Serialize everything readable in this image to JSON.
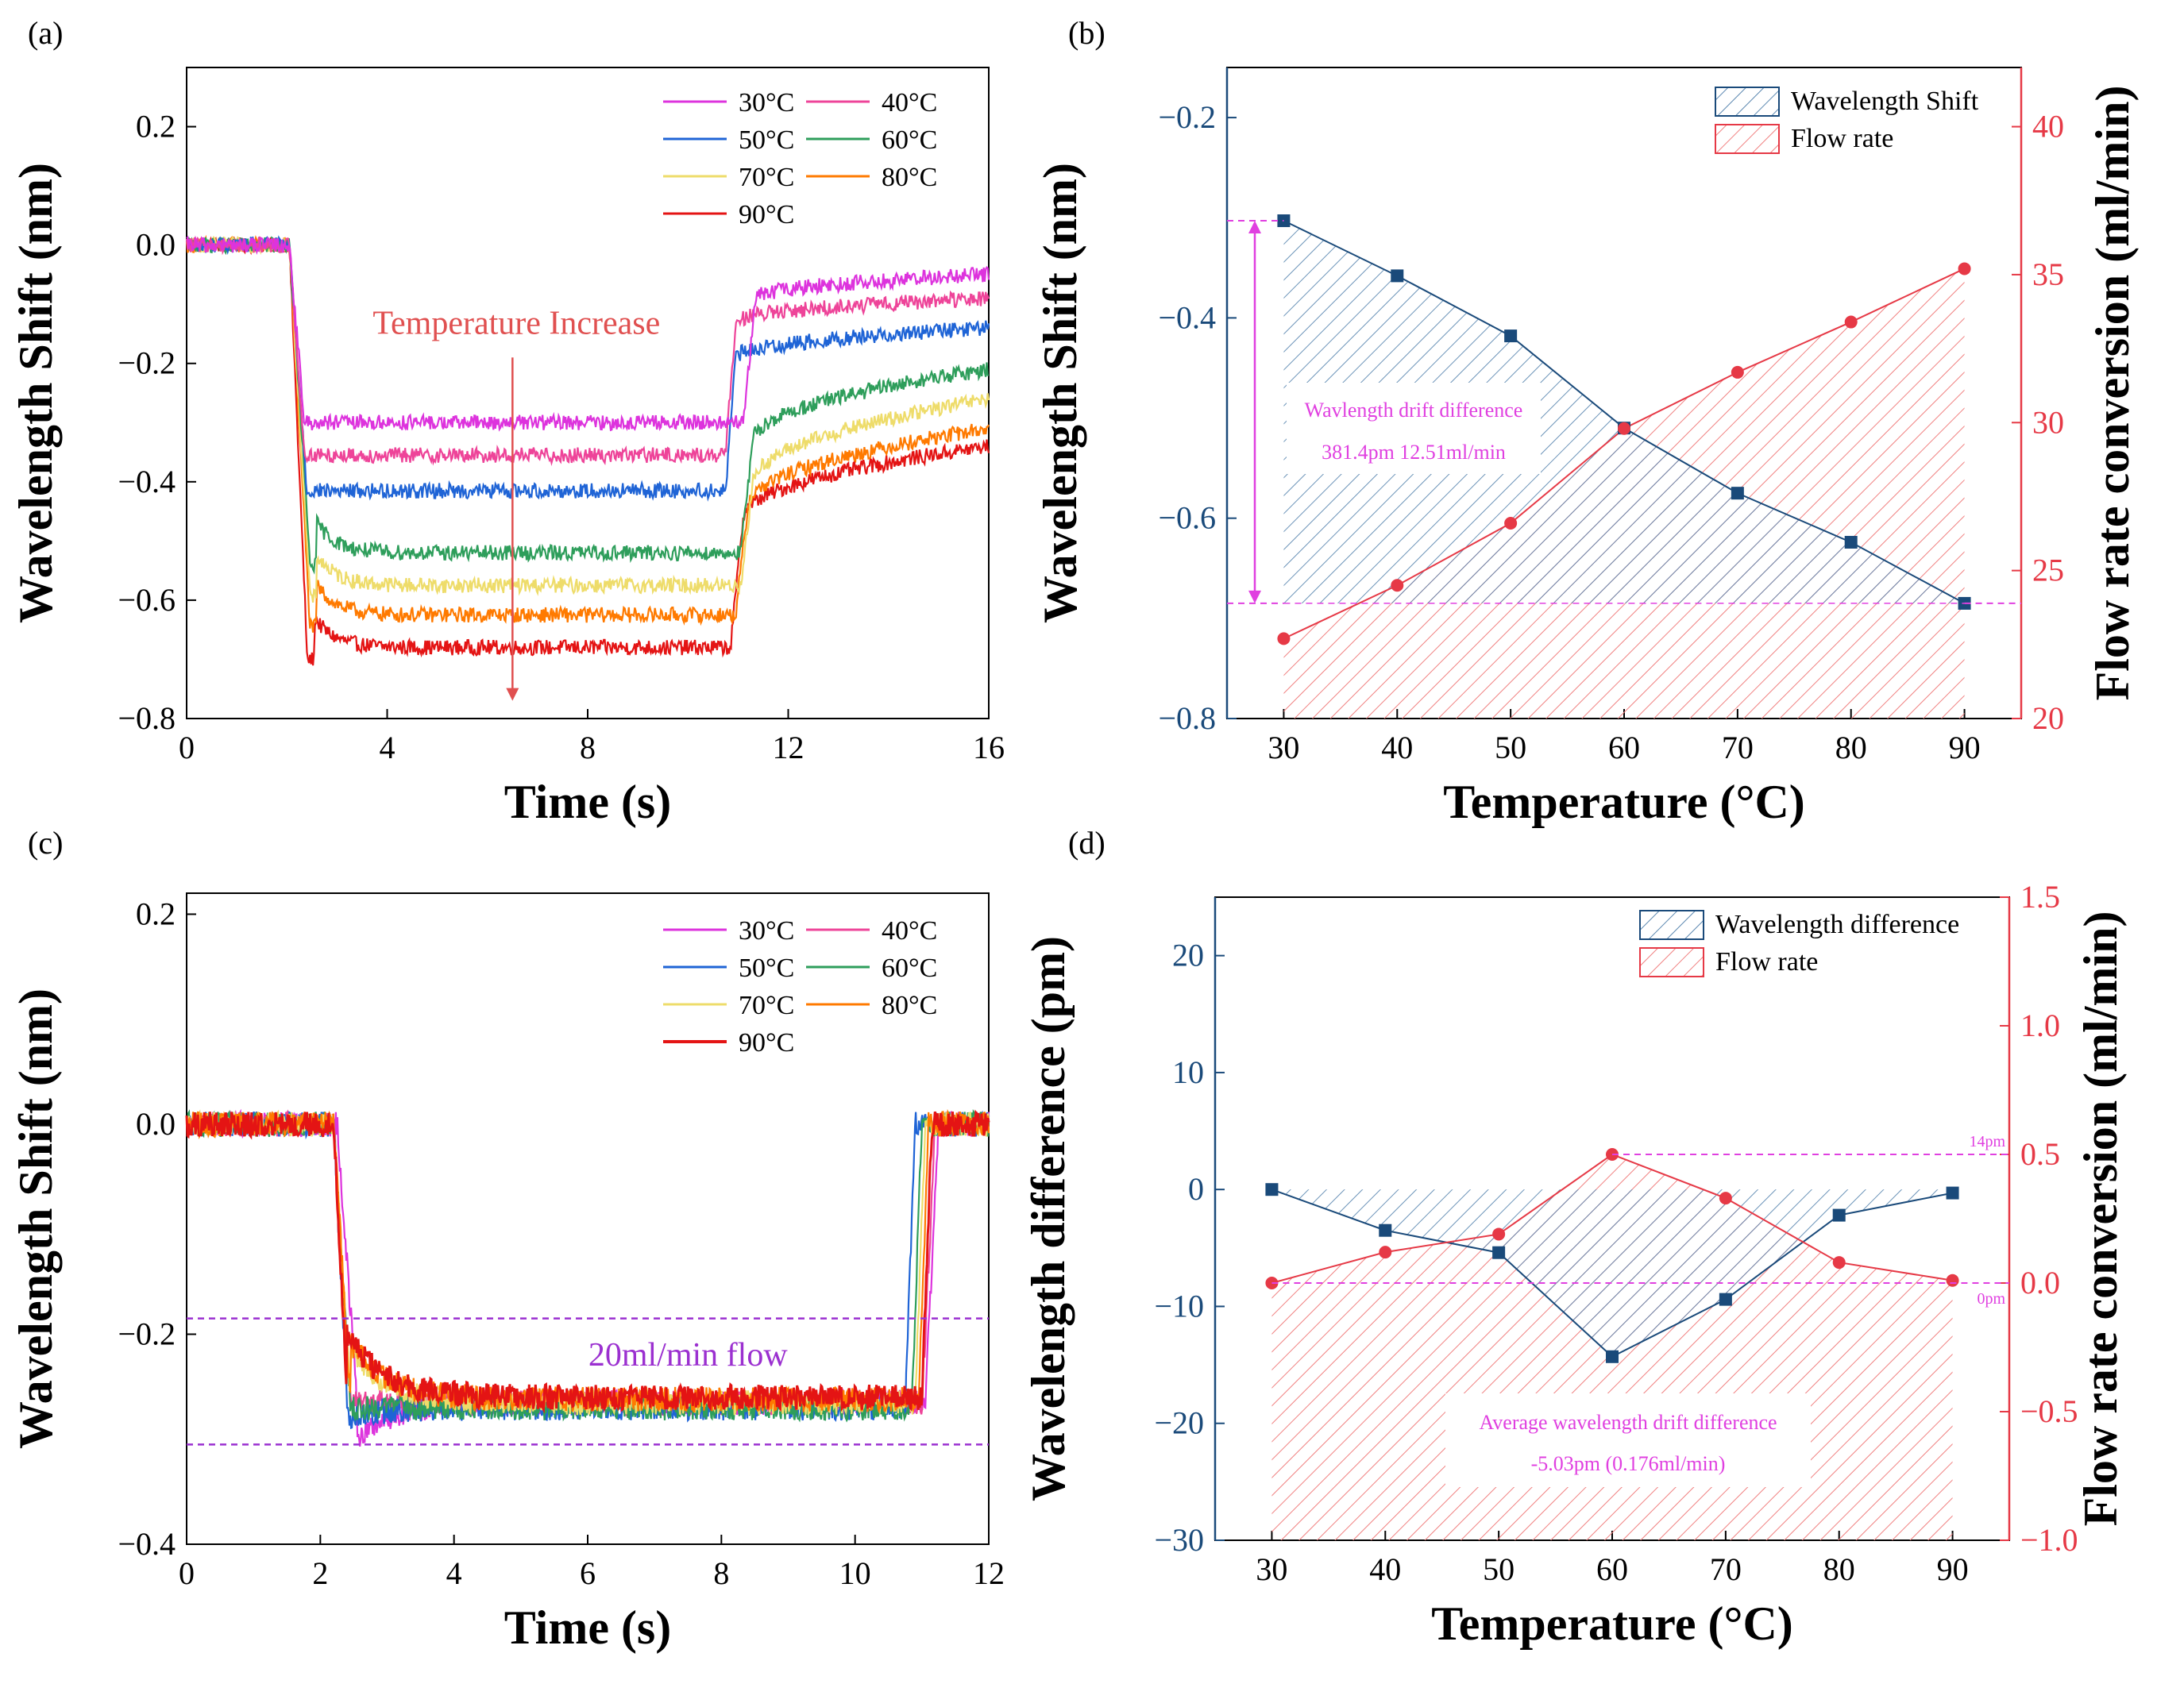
{
  "colors": {
    "30": "#dd33dd",
    "40": "#ee4499",
    "50": "#1f64d6",
    "60": "#2e9e5b",
    "70": "#eedc6a",
    "80": "#ff7a00",
    "90": "#e41414",
    "navy": "#1a4a7a",
    "red": "#e63946",
    "magenta": "#e040e0",
    "violet": "#9b30d0",
    "hatchBlue": "#5a87b0",
    "hatchRed": "#f08080",
    "arrowRed": "#e05050",
    "axisBlue": "#1a4a7a",
    "axisRed": "#e63946"
  },
  "panels": {
    "a": {
      "label": "(a)"
    },
    "b": {
      "label": "(b)"
    },
    "c": {
      "label": "(c)"
    },
    "d": {
      "label": "(d)"
    }
  },
  "chart_data": [
    {
      "id": "a",
      "type": "line",
      "xlabel": "Time (s)",
      "ylabel": "Wavelength Shift (nm)",
      "xlim": [
        0,
        16
      ],
      "ylim": [
        -0.8,
        0.3
      ],
      "xticks": [
        0,
        4,
        8,
        12,
        16
      ],
      "yticks": [
        -0.8,
        -0.6,
        -0.4,
        -0.2,
        0.0,
        0.2
      ],
      "ytick_labels": [
        "−0.8",
        "−0.6",
        "−0.4",
        "−0.2",
        "0.0",
        "0.2"
      ],
      "annotation": {
        "text": "Temperature Increase",
        "arrow_x": 6.5,
        "arrow_from": -0.19,
        "arrow_to": -0.77
      },
      "legend": [
        "30°C",
        "40°C",
        "50°C",
        "60°C",
        "70°C",
        "80°C",
        "90°C"
      ],
      "series": [
        {
          "name": "30°C",
          "key": "30",
          "baseline": 0.0,
          "drop_start": 2.05,
          "drop_end": 2.35,
          "plateau": -0.3,
          "spike": 0.0,
          "rise_start": 11.1,
          "rise_end": 11.35,
          "recover_start": -0.09,
          "recover_end": -0.05
        },
        {
          "name": "40°C",
          "key": "40",
          "baseline": 0.0,
          "drop_start": 2.05,
          "drop_end": 2.35,
          "plateau": -0.355,
          "spike": 0.0,
          "rise_start": 10.75,
          "rise_end": 10.95,
          "recover_start": -0.13,
          "recover_end": -0.09
        },
        {
          "name": "50°C",
          "key": "50",
          "baseline": 0.0,
          "drop_start": 2.05,
          "drop_end": 2.4,
          "plateau": -0.415,
          "spike": 0.0,
          "rise_start": 10.75,
          "rise_end": 10.95,
          "recover_start": -0.19,
          "recover_end": -0.14
        },
        {
          "name": "60°C",
          "key": "60",
          "baseline": 0.0,
          "drop_start": 2.05,
          "drop_end": 2.45,
          "plateau": -0.52,
          "spike": -0.02,
          "rise_start": 11.05,
          "rise_end": 11.3,
          "recover_start": -0.33,
          "recover_end": -0.21
        },
        {
          "name": "70°C",
          "key": "70",
          "baseline": 0.0,
          "drop_start": 2.05,
          "drop_end": 2.45,
          "plateau": -0.575,
          "spike": -0.03,
          "rise_start": 11.05,
          "rise_end": 11.3,
          "recover_start": -0.4,
          "recover_end": -0.26
        },
        {
          "name": "80°C",
          "key": "80",
          "baseline": 0.0,
          "drop_start": 2.05,
          "drop_end": 2.45,
          "plateau": -0.625,
          "spike": -0.03,
          "rise_start": 10.95,
          "rise_end": 11.2,
          "recover_start": -0.44,
          "recover_end": -0.31
        },
        {
          "name": "90°C",
          "key": "90",
          "baseline": 0.0,
          "drop_start": 2.05,
          "drop_end": 2.4,
          "plateau": -0.68,
          "spike": -0.02,
          "rise_start": 10.85,
          "rise_end": 11.1,
          "recover_start": -0.46,
          "recover_end": -0.34
        }
      ]
    },
    {
      "id": "b",
      "type": "line",
      "xlabel": "Temperature (°C)",
      "ylabel": "Wavelength Shift (nm)",
      "y2label": "Flow rate conversion (ml/min)",
      "xlim": [
        25,
        95
      ],
      "ylim": [
        -0.8,
        -0.15
      ],
      "y2lim": [
        20,
        42
      ],
      "xticks": [
        30,
        40,
        50,
        60,
        70,
        80,
        90
      ],
      "yticks": [
        -0.8,
        -0.6,
        -0.4,
        -0.2
      ],
      "ytick_labels": [
        "−0.8",
        "−0.6",
        "−0.4",
        "−0.2"
      ],
      "y2ticks": [
        20,
        25,
        30,
        35,
        40
      ],
      "categories": [
        30,
        40,
        50,
        60,
        70,
        80,
        90
      ],
      "series": [
        {
          "name": "Wavelength Shift",
          "axis": "left",
          "values": [
            -0.303,
            -0.358,
            -0.418,
            -0.51,
            -0.575,
            -0.624,
            -0.685
          ]
        },
        {
          "name": "Flow rate",
          "axis": "right",
          "values": [
            22.7,
            24.5,
            26.6,
            29.8,
            31.7,
            33.4,
            35.2
          ]
        }
      ],
      "legend": [
        "Wavelength Shift",
        "Flow rate"
      ],
      "annotation_title": "Wavlength drift difference",
      "annotation_value": "381.4pm 12.51ml/min",
      "ref_lines": [
        -0.303,
        -0.685
      ]
    },
    {
      "id": "c",
      "type": "line",
      "xlabel": "Time (s)",
      "ylabel": "Wavelength Shift (nm)",
      "xlim": [
        0,
        12
      ],
      "ylim": [
        -0.4,
        0.22
      ],
      "xticks": [
        0,
        2,
        4,
        6,
        8,
        10,
        12
      ],
      "yticks": [
        -0.4,
        -0.2,
        0.0,
        0.2
      ],
      "ytick_labels": [
        "−0.4",
        "−0.2",
        "0.0",
        "0.2"
      ],
      "annotation": {
        "text": "20ml/min flow"
      },
      "ref_lines": [
        -0.185,
        -0.305
      ],
      "legend": [
        "30°C",
        "40°C",
        "50°C",
        "60°C",
        "70°C",
        "80°C",
        "90°C"
      ],
      "series": [
        {
          "name": "30°C",
          "key": "30",
          "drop_start": 2.25,
          "drop_end": 2.55,
          "plateau": -0.265,
          "spike": -0.035,
          "rise_start": 11.05,
          "rise_end": 11.25
        },
        {
          "name": "40°C",
          "key": "40",
          "drop_start": 2.2,
          "drop_end": 2.45,
          "plateau": -0.265,
          "spike": 0.0,
          "rise_start": 11.0,
          "rise_end": 11.2
        },
        {
          "name": "50°C",
          "key": "50",
          "drop_start": 2.2,
          "drop_end": 2.4,
          "plateau": -0.27,
          "spike": -0.01,
          "rise_start": 10.75,
          "rise_end": 10.9
        },
        {
          "name": "60°C",
          "key": "60",
          "drop_start": 2.2,
          "drop_end": 2.45,
          "plateau": -0.27,
          "spike": 0.0,
          "rise_start": 10.85,
          "rise_end": 11.0
        },
        {
          "name": "70°C",
          "key": "70",
          "drop_start": 2.2,
          "drop_end": 2.45,
          "plateau": -0.265,
          "spike": 0.05,
          "rise_start": 10.9,
          "rise_end": 11.05
        },
        {
          "name": "80°C",
          "key": "80",
          "drop_start": 2.2,
          "drop_end": 2.45,
          "plateau": -0.262,
          "spike": 0.055,
          "rise_start": 10.95,
          "rise_end": 11.1
        },
        {
          "name": "90°C",
          "key": "90",
          "drop_start": 2.2,
          "drop_end": 2.4,
          "plateau": -0.26,
          "spike": 0.06,
          "rise_start": 11.0,
          "rise_end": 11.15
        }
      ]
    },
    {
      "id": "d",
      "type": "line",
      "xlabel": "Temperature (°C)",
      "ylabel": "Wavelength difference (pm)",
      "y2label": "Flow rate conversion (ml/min)",
      "xlim": [
        25,
        95
      ],
      "ylim": [
        -30,
        25
      ],
      "y2lim": [
        -1.0,
        1.5
      ],
      "xticks": [
        30,
        40,
        50,
        60,
        70,
        80,
        90
      ],
      "yticks": [
        -30,
        -20,
        -10,
        0,
        10,
        20
      ],
      "ytick_labels": [
        "−30",
        "−20",
        "−10",
        "0",
        "10",
        "20"
      ],
      "y2ticks": [
        -1.0,
        -0.5,
        0.0,
        0.5,
        1.0,
        1.5
      ],
      "y2tick_labels": [
        "−1.0",
        "−0.5",
        "0.0",
        "0.5",
        "1.0",
        "1.5"
      ],
      "categories": [
        30,
        40,
        50,
        60,
        70,
        80,
        90
      ],
      "series": [
        {
          "name": "Wavelength difference",
          "axis": "left",
          "values": [
            0.0,
            -3.5,
            -5.4,
            -14.3,
            -9.4,
            -2.2,
            -0.3
          ]
        },
        {
          "name": "Flow rate",
          "axis": "right",
          "values": [
            0.0,
            0.12,
            0.19,
            0.5,
            0.33,
            0.08,
            0.01
          ]
        }
      ],
      "legend": [
        "Wavelength difference",
        "Flow rate"
      ],
      "ref_labels": [
        "14pm",
        "0pm"
      ],
      "ref_values": [
        0.5,
        0.0
      ],
      "annotation_title": "Average wavelength drift difference",
      "annotation_value": "-5.03pm (0.176ml/min)"
    }
  ]
}
